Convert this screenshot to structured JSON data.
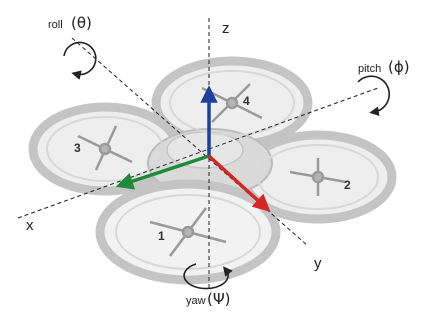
{
  "axes": {
    "z": {
      "label": "z"
    },
    "x": {
      "label": "x"
    },
    "y": {
      "label": "y"
    }
  },
  "rotations": {
    "roll": {
      "label": "roll",
      "symbol": "(θ)"
    },
    "pitch": {
      "label": "pitch",
      "symbol": "(ϕ)"
    },
    "yaw": {
      "label": "yaw",
      "symbol": "(Ψ)"
    }
  },
  "rotors": [
    "1",
    "2",
    "3",
    "4"
  ],
  "colors": {
    "z_vector": "#1f3f9c",
    "x_vector": "#1e8a3a",
    "y_vector": "#d62525",
    "frame": "#c8c8c8",
    "lines": "#222222"
  }
}
